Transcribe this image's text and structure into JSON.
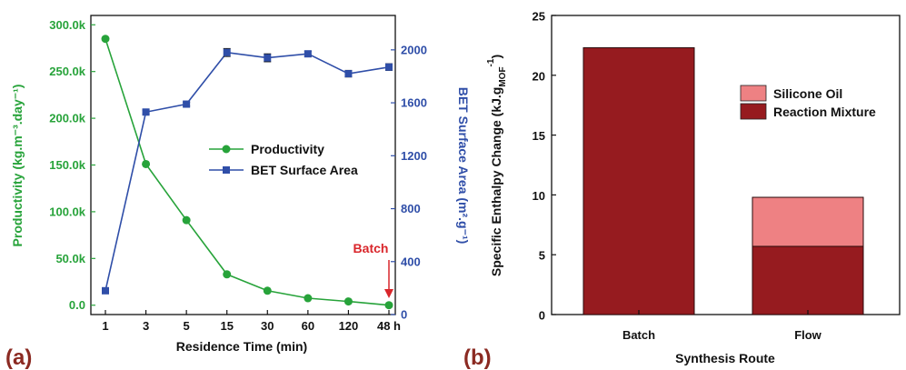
{
  "chart_data": [
    {
      "type": "line",
      "panel_label": "(a)",
      "categories": [
        "1",
        "3",
        "5",
        "15",
        "30",
        "60",
        "120",
        "48 h"
      ],
      "xlabel": "Residence Time (min)",
      "ylabel": "Productivity (kg.m⁻³.day⁻¹)",
      "ylabel_right": "BET Surface Area (m².g⁻¹)",
      "ylim": [
        -10000,
        310000
      ],
      "ylim_right": [
        0,
        2260
      ],
      "yticks": [
        0,
        50000,
        100000,
        150000,
        200000,
        250000,
        300000
      ],
      "yticklabels": [
        "0.0",
        "50.0k",
        "100.0k",
        "150.0k",
        "200.0k",
        "250.0k",
        "300.0k"
      ],
      "yticks_right": [
        0,
        400,
        800,
        1200,
        1600,
        2000
      ],
      "yticklabels_right": [
        "0",
        "400",
        "800",
        "1200",
        "1600",
        "2000"
      ],
      "legend_position": "center-right",
      "series": [
        {
          "name": "Productivity",
          "axis": "left",
          "marker": "circle",
          "color": "#27a33a",
          "values": [
            285000,
            151000,
            91000,
            33000,
            15500,
            7500,
            4000,
            0
          ]
        },
        {
          "name": "BET Surface Area",
          "axis": "right",
          "marker": "square",
          "color": "#2f4ea8",
          "values": [
            180,
            1530,
            1590,
            1980,
            1940,
            1970,
            1820,
            1870
          ],
          "errors": [
            15,
            15,
            15,
            30,
            30,
            20,
            25,
            25
          ]
        }
      ],
      "annotations": [
        {
          "text": "Batch",
          "color": "#d9262b",
          "category": "48 h"
        }
      ]
    },
    {
      "type": "bar",
      "panel_label": "(b)",
      "stacked": true,
      "categories": [
        "Batch",
        "Flow"
      ],
      "xlabel": "Synthesis Route",
      "ylabel_main": "Specific Enthalpy Change (kJ.g",
      "ylabel_sub": "MOF",
      "ylabel_sup": "-1",
      "ylabel_close": ")",
      "ylim": [
        0,
        25
      ],
      "yticks": [
        0,
        5,
        10,
        15,
        20,
        25
      ],
      "legend_position": "right",
      "series": [
        {
          "name": "Reaction Mixture",
          "color": "#961b1f",
          "values": [
            22.3,
            5.7
          ]
        },
        {
          "name": "Silicone Oil",
          "color": "#ee8183",
          "values": [
            0,
            4.1
          ]
        }
      ]
    }
  ]
}
